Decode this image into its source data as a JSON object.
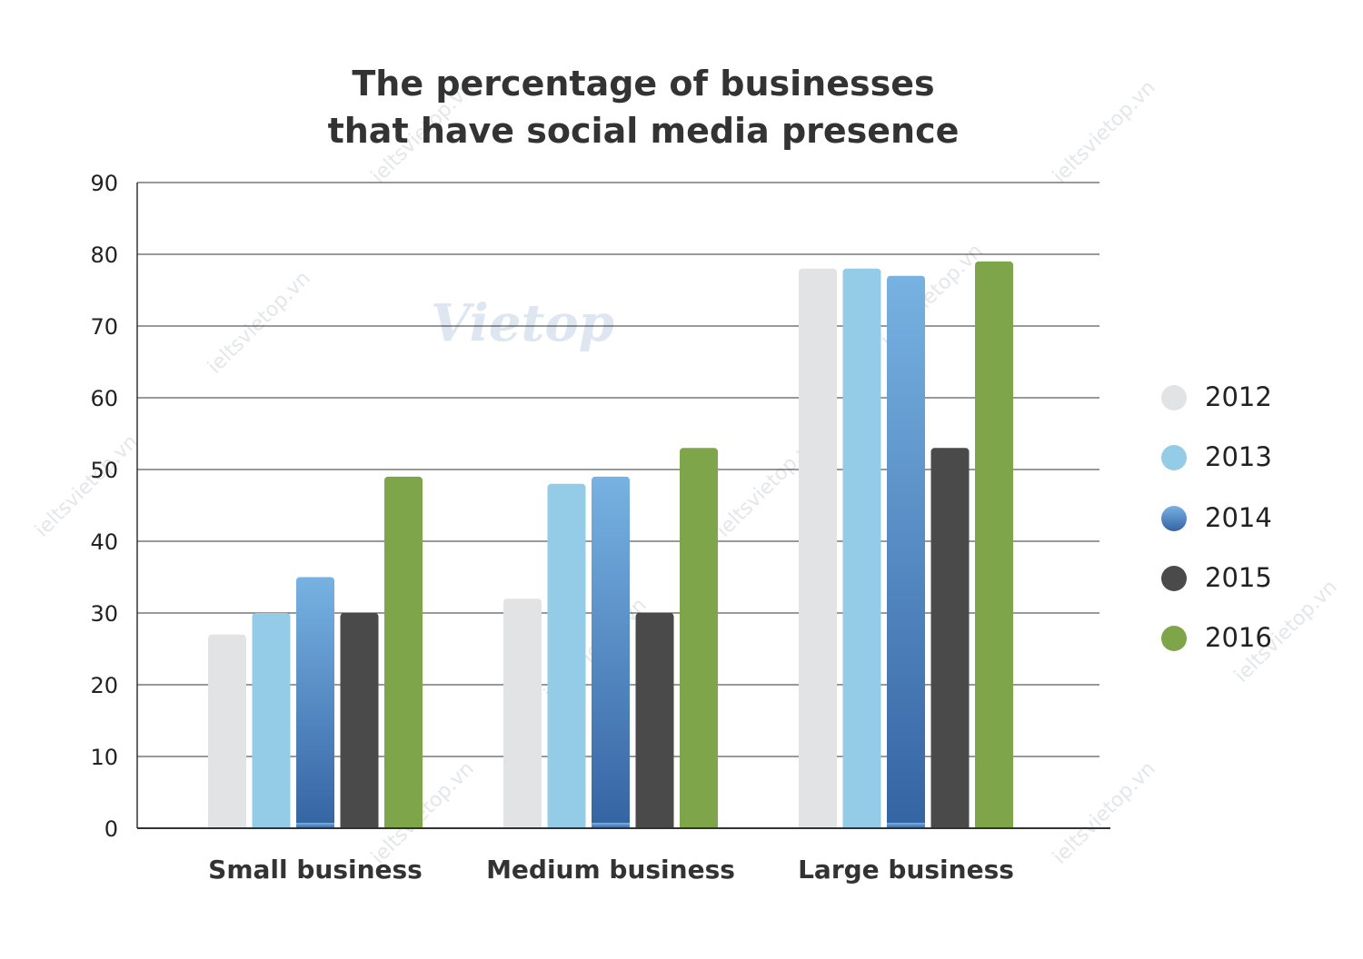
{
  "chart_data": {
    "type": "bar",
    "title": [
      "The percentage of businesses",
      "that have social media presence"
    ],
    "xlabel": "",
    "ylabel": "",
    "ylim": [
      0,
      90
    ],
    "yticks": [
      0,
      10,
      20,
      30,
      40,
      50,
      60,
      70,
      80,
      90
    ],
    "grid": true,
    "legend_position": "right",
    "categories": [
      "Small business",
      "Medium business",
      "Large business"
    ],
    "series": [
      {
        "name": "2012",
        "values": [
          27,
          32,
          78
        ]
      },
      {
        "name": "2013",
        "values": [
          30,
          48,
          78
        ]
      },
      {
        "name": "2014",
        "values": [
          35,
          49,
          77
        ]
      },
      {
        "name": "2015",
        "values": [
          30,
          30,
          53
        ]
      },
      {
        "name": "2016",
        "values": [
          49,
          53,
          79
        ]
      }
    ]
  },
  "series_style": [
    {
      "gradient": false,
      "color": "#e2e3e5"
    },
    {
      "gradient": false,
      "color": "#94cce8"
    },
    {
      "gradient": true,
      "color_top": "#77b2e2",
      "color_bottom": "#3563a3"
    },
    {
      "gradient": false,
      "color": "#4a4a4a"
    },
    {
      "gradient": false,
      "color": "#7ea54a"
    }
  ],
  "watermark": {
    "text": "ieltsvietop.vn",
    "logo": "Vietop"
  }
}
